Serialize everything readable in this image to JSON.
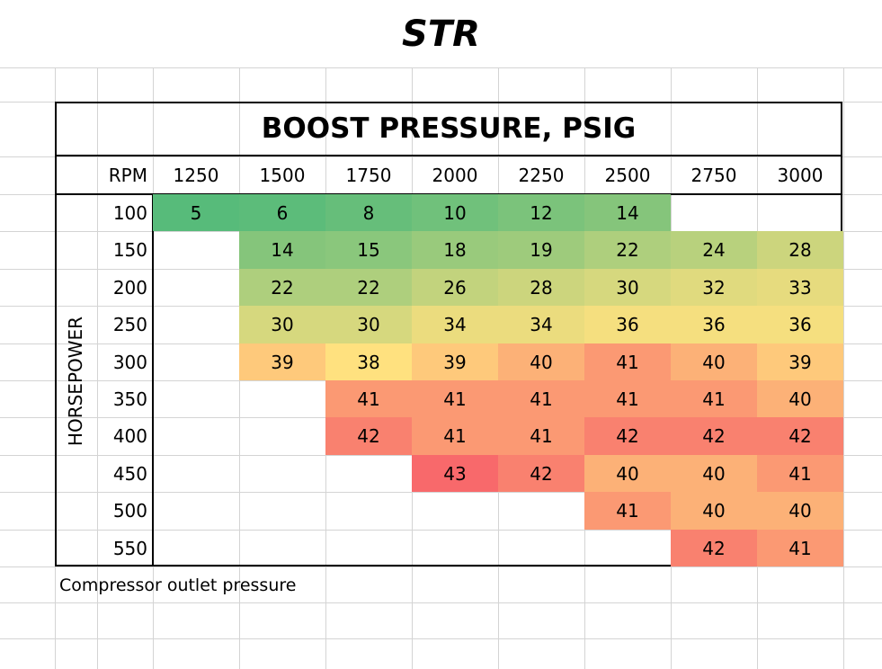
{
  "title": "STR",
  "header": "BOOST PRESSURE, PSIG",
  "rpm_label": "RPM",
  "hp_label": "HORSEPOWER",
  "footer": "Compressor outlet pressure",
  "colors": {
    "low": "#57bb7a",
    "mid": "#ffe17f",
    "high": "#f8696b"
  },
  "chart_data": {
    "type": "heatmap",
    "title": "BOOST PRESSURE, PSIG",
    "xlabel": "RPM",
    "ylabel": "HORSEPOWER",
    "x": [
      "1250",
      "1500",
      "1750",
      "2000",
      "2250",
      "2500",
      "2750",
      "3000"
    ],
    "y": [
      "100",
      "150",
      "200",
      "250",
      "300",
      "350",
      "400",
      "450",
      "500",
      "550"
    ],
    "values": [
      [
        5,
        6,
        8,
        10,
        12,
        14,
        null,
        null
      ],
      [
        null,
        14,
        15,
        18,
        19,
        22,
        24,
        28
      ],
      [
        null,
        22,
        22,
        26,
        28,
        30,
        32,
        33
      ],
      [
        null,
        30,
        30,
        34,
        34,
        36,
        36,
        36
      ],
      [
        null,
        39,
        38,
        39,
        40,
        41,
        40,
        39
      ],
      [
        null,
        null,
        41,
        41,
        41,
        41,
        41,
        40
      ],
      [
        null,
        null,
        42,
        41,
        41,
        42,
        42,
        42
      ],
      [
        null,
        null,
        null,
        43,
        42,
        40,
        40,
        41
      ],
      [
        null,
        null,
        null,
        null,
        null,
        41,
        40,
        40
      ],
      [
        null,
        null,
        null,
        null,
        null,
        null,
        42,
        41
      ]
    ]
  }
}
